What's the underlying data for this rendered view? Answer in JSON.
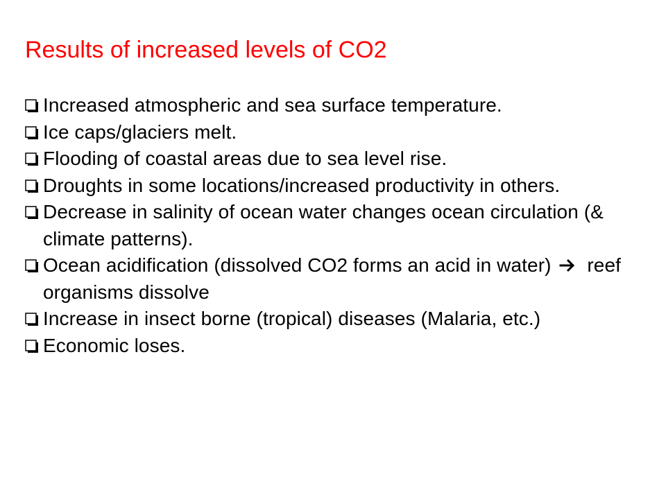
{
  "slide": {
    "title": "Results of increased levels of CO2",
    "title_color": "#ff0000",
    "bullet_icon": "checkbox-square-icon",
    "bullets": [
      {
        "text": "Increased atmospheric and sea surface temperature."
      },
      {
        "text": "Ice caps/glaciers melt."
      },
      {
        "text": "Flooding of coastal areas due to sea level rise."
      },
      {
        "text": "Droughts in some locations/increased productivity in others."
      },
      {
        "text": "Decrease in salinity of ocean water changes ocean circulation (& climate patterns)."
      },
      {
        "text_before": "Ocean acidification (dissolved CO2 forms an acid in water)",
        "arrow_icon": "right-arrow-icon",
        "text_after": "reef organisms dissolve"
      },
      {
        "text": "Increase in insect borne (tropical) diseases (Malaria, etc.)"
      },
      {
        "text": "Economic loses."
      }
    ]
  }
}
